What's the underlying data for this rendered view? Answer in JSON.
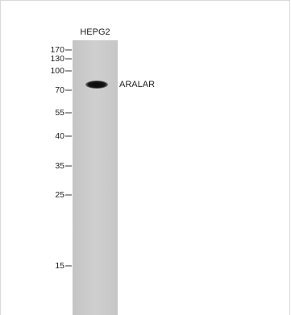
{
  "lane": {
    "label": "HEPG2"
  },
  "markers": [
    "170",
    "130",
    "100",
    "70",
    "55",
    "40",
    "35",
    "25",
    "15"
  ],
  "band": {
    "label": "ARALAR"
  }
}
